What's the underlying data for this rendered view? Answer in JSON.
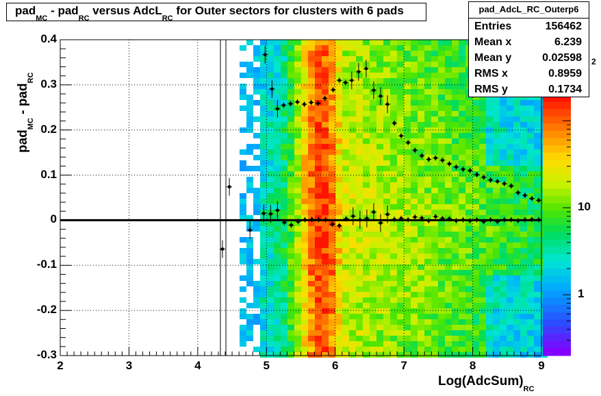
{
  "title": {
    "p1": "pad",
    "s1": "MC",
    "p2": " - pad",
    "s2": "RC",
    "p3": " versus AdcL",
    "s3": "RC",
    "p4": " for Outer sectors for clusters with 6 pads"
  },
  "stats": {
    "name": "pad_AdcL_RC_Outerp6",
    "rows": [
      {
        "key": "Entries",
        "value": "156462"
      },
      {
        "key": "Mean x",
        "value": "6.239"
      },
      {
        "key": "Mean y",
        "value": "0.02598"
      },
      {
        "key": "RMS x",
        "value": "0.8959"
      },
      {
        "key": "RMS y",
        "value": "0.1734"
      }
    ]
  },
  "colors": {
    "frame": "#000000",
    "grid": "#000000",
    "points": "#000000"
  },
  "chart_data": {
    "type": "heatmap",
    "xlabel": "Log(AdcSum)",
    "xlabel_sub": "RC",
    "ylabel": "pad",
    "ylabel_sub1": "MC",
    "ylabel_mid": " - pad",
    "ylabel_sub2": "RC",
    "xlim": [
      2,
      9
    ],
    "ylim": [
      -0.3,
      0.4
    ],
    "x_ticks": [
      "2",
      "3",
      "4",
      "5",
      "6",
      "7",
      "8",
      "9"
    ],
    "y_ticks": [
      "-0.3",
      "-0.2",
      "-0.1",
      "0",
      "0.1",
      "0.2",
      "0.3",
      "0.4"
    ],
    "z_scale": "log",
    "z_ticks": [
      "1",
      "10"
    ],
    "z_exponent_label": "2",
    "grid": true,
    "profile_upper": [
      [
        4.98,
        0.367
      ],
      [
        5.08,
        0.291
      ],
      [
        5.16,
        0.247
      ],
      [
        5.25,
        0.255
      ],
      [
        5.35,
        0.258
      ],
      [
        5.45,
        0.262
      ],
      [
        5.55,
        0.257
      ],
      [
        5.65,
        0.261
      ],
      [
        5.75,
        0.259
      ],
      [
        5.85,
        0.27
      ],
      [
        5.97,
        0.289
      ],
      [
        6.06,
        0.31
      ],
      [
        6.15,
        0.305
      ],
      [
        6.24,
        0.31
      ],
      [
        6.34,
        0.329
      ],
      [
        6.45,
        0.336
      ],
      [
        6.56,
        0.288
      ],
      [
        6.66,
        0.275
      ],
      [
        6.76,
        0.257
      ],
      [
        6.86,
        0.215
      ],
      [
        6.96,
        0.187
      ],
      [
        7.06,
        0.172
      ],
      [
        7.16,
        0.155
      ],
      [
        7.26,
        0.143
      ],
      [
        7.36,
        0.135
      ],
      [
        7.46,
        0.138
      ],
      [
        7.56,
        0.133
      ],
      [
        7.66,
        0.125
      ],
      [
        7.76,
        0.118
      ],
      [
        7.86,
        0.113
      ],
      [
        7.96,
        0.11
      ],
      [
        8.06,
        0.101
      ],
      [
        8.16,
        0.095
      ],
      [
        8.26,
        0.089
      ],
      [
        8.36,
        0.086
      ],
      [
        8.46,
        0.081
      ],
      [
        8.56,
        0.076
      ],
      [
        8.66,
        0.061
      ],
      [
        8.76,
        0.055
      ],
      [
        8.86,
        0.048
      ],
      [
        8.96,
        0.044
      ]
    ],
    "profile_lower": [
      [
        4.36,
        -0.064
      ],
      [
        4.46,
        0.074
      ],
      [
        4.76,
        -0.022
      ],
      [
        4.96,
        0.015
      ],
      [
        5.06,
        0.014
      ],
      [
        5.16,
        0.022
      ],
      [
        5.26,
        -0.005
      ],
      [
        5.36,
        -0.011
      ],
      [
        5.46,
        -0.003
      ],
      [
        5.56,
        0.001
      ],
      [
        5.66,
        0.002
      ],
      [
        5.76,
        0.001
      ],
      [
        5.86,
        0.001
      ],
      [
        5.96,
        -0.009
      ],
      [
        6.06,
        -0.012
      ],
      [
        6.16,
        0.003
      ],
      [
        6.26,
        0.009
      ],
      [
        6.36,
        0.001
      ],
      [
        6.46,
        0.004
      ],
      [
        6.56,
        0.018
      ],
      [
        6.66,
        -0.006
      ],
      [
        6.76,
        0.013
      ],
      [
        6.86,
        0.002
      ],
      [
        6.96,
        0.004
      ],
      [
        7.06,
        0.001
      ],
      [
        7.16,
        0.007
      ],
      [
        7.26,
        0.005
      ],
      [
        7.36,
        -0.001
      ],
      [
        7.46,
        0.008
      ],
      [
        7.56,
        0.004
      ],
      [
        7.66,
        0.003
      ],
      [
        7.76,
        -0.001
      ],
      [
        7.86,
        0.001
      ],
      [
        7.96,
        -0.001
      ],
      [
        8.06,
        0.001
      ],
      [
        8.16,
        -0.003
      ],
      [
        8.26,
        0.001
      ],
      [
        8.36,
        -0.003
      ],
      [
        8.46,
        0.001
      ],
      [
        8.56,
        0.001
      ],
      [
        8.66,
        -0.001
      ],
      [
        8.76,
        0.001
      ],
      [
        8.86,
        0.002
      ],
      [
        8.96,
        0.001
      ]
    ]
  }
}
